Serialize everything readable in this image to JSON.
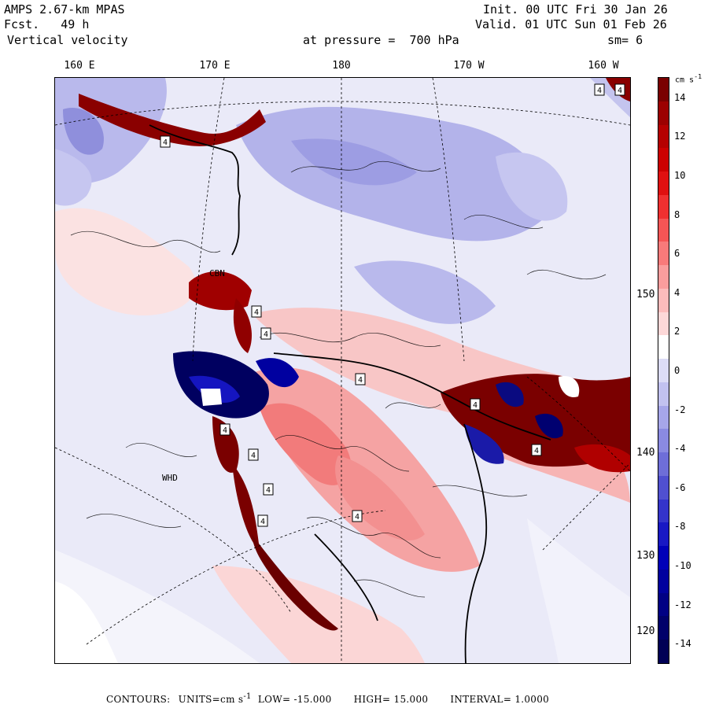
{
  "header": {
    "model": "AMPS 2.67-km MPAS",
    "forecast_label": "Fcst.",
    "forecast_value": "49 h",
    "field": "Vertical velocity",
    "init_label": "Init.",
    "init_value": "00 UTC Fri 30 Jan 26",
    "valid_label": "Valid.",
    "valid_value": "01 UTC Sun 01 Feb 26",
    "level_label": "at pressure =",
    "level_value": "700 hPa",
    "smoothing_label": "sm=",
    "smoothing_value": "6"
  },
  "longitude_labels": [
    "160 E",
    "170 E",
    "180",
    "170 W",
    "160 W"
  ],
  "latitude_labels": [
    "150 W",
    "140 W",
    "130 W",
    "120 W"
  ],
  "colorbar": {
    "units_label": "cm s",
    "units_exp": "-1",
    "tick_labels": [
      "14",
      "12",
      "10",
      "8",
      "6",
      "4",
      "2",
      "0",
      "-2",
      "-4",
      "-6",
      "-8",
      "-10",
      "-12",
      "-14"
    ],
    "colors": [
      "#7a0000",
      "#9c0000",
      "#b50000",
      "#cc0000",
      "#e01010",
      "#f03030",
      "#f55555",
      "#f87a7a",
      "#fa9d9d",
      "#fcbcbc",
      "#fdd8d8",
      "#ffffff",
      "#dcdcf6",
      "#c2c2f0",
      "#a6a6e9",
      "#8a8ae1",
      "#6e6ed8",
      "#5050d0",
      "#3434ca",
      "#1818c4",
      "#0000b8",
      "#00009e",
      "#000084",
      "#00006a",
      "#000055"
    ],
    "range": [
      -15,
      15
    ]
  },
  "map_annotations": {
    "station_markers": [
      "4",
      "4",
      "4",
      "4",
      "4",
      "4",
      "4",
      "4",
      "4",
      "4",
      "4",
      "4",
      "4"
    ],
    "place_labels": [
      "CBN",
      "WHD"
    ]
  },
  "footer": {
    "contours_label": "CONTOURS:",
    "units_label": "UNITS=cm s",
    "units_exp": "-1",
    "low_label": "LOW=",
    "low_value": "-15.000",
    "high_label": "HIGH=",
    "high_value": "15.000",
    "interval_label": "INTERVAL=",
    "interval_value": "1.0000"
  }
}
